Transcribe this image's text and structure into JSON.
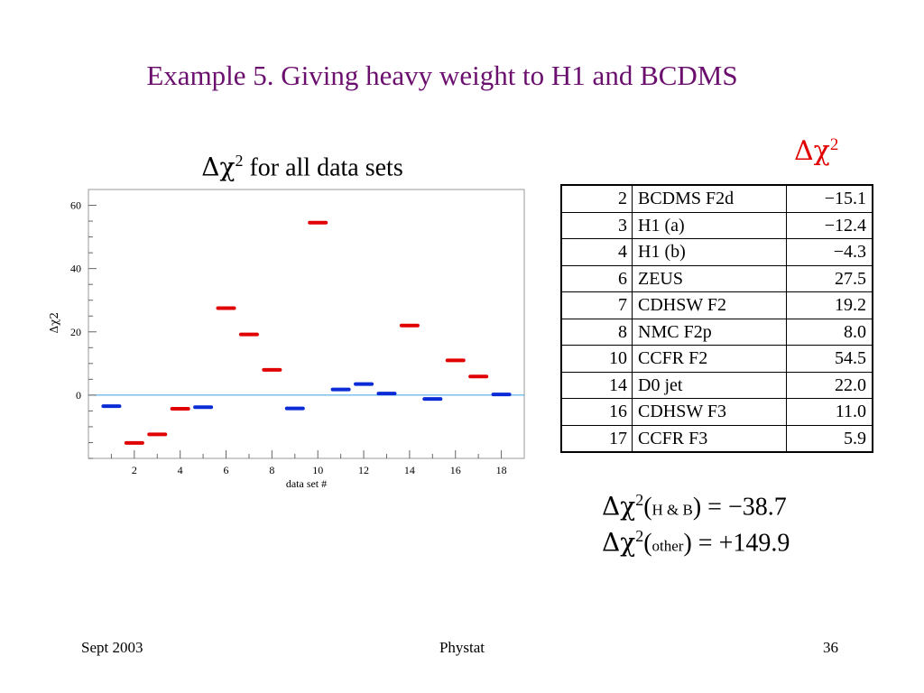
{
  "slide": {
    "title": "Example 5. Giving heavy weight to H1 and BCDMS",
    "chart_title_delta": "Δχ",
    "chart_title_sup": "2",
    "chart_title_rest": " for all data sets",
    "table_title_delta": "Δχ",
    "table_title_sup": "2"
  },
  "table": {
    "rows": [
      {
        "set": "2",
        "name": "BCDMS F2d",
        "value": "−15.1"
      },
      {
        "set": "3",
        "name": "H1 (a)",
        "value": "−12.4"
      },
      {
        "set": "4",
        "name": "H1 (b)",
        "value": "−4.3"
      },
      {
        "set": "6",
        "name": "ZEUS",
        "value": "27.5"
      },
      {
        "set": "7",
        "name": "CDHSW F2",
        "value": "19.2"
      },
      {
        "set": "8",
        "name": "NMC F2p",
        "value": "8.0"
      },
      {
        "set": "10",
        "name": "CCFR F2",
        "value": "54.5"
      },
      {
        "set": "14",
        "name": "D0 jet",
        "value": "22.0"
      },
      {
        "set": "16",
        "name": "CDHSW F3",
        "value": "11.0"
      },
      {
        "set": "17",
        "name": "CCFR F3",
        "value": "5.9"
      }
    ]
  },
  "summary": {
    "line1_prefix": "Δχ",
    "line1_sup": "2",
    "line1_open": "(",
    "line1_small": "H & B",
    "line1_rest": ") = −38.7",
    "line2_prefix": "Δχ",
    "line2_sup": "2",
    "line2_open": "(",
    "line2_small": "other",
    "line2_rest": ") = +149.9"
  },
  "footer": {
    "left": "Sept 2003",
    "center": "Phystat",
    "right": "36"
  },
  "colors": {
    "title": "#6b0f6e",
    "red_series": "#e00000",
    "blue_series": "#0a2bd6",
    "zero_line": "#3aa0e6"
  },
  "chart_data": {
    "type": "scatter",
    "xlabel": "data set #",
    "ylabel": "Δχ2",
    "xlim": [
      0,
      19
    ],
    "ylim": [
      -20,
      65
    ],
    "x_ticks": [
      2,
      4,
      6,
      8,
      10,
      12,
      14,
      16,
      18
    ],
    "y_ticks": [
      0,
      20,
      40,
      60
    ],
    "series": [
      {
        "color": "#e00000",
        "points": [
          {
            "x": 2,
            "y": -15.1
          },
          {
            "x": 3,
            "y": -12.4
          },
          {
            "x": 4,
            "y": -4.3
          },
          {
            "x": 6,
            "y": 27.5
          },
          {
            "x": 7,
            "y": 19.2
          },
          {
            "x": 8,
            "y": 8.0
          },
          {
            "x": 10,
            "y": 54.5
          },
          {
            "x": 14,
            "y": 22.0
          },
          {
            "x": 16,
            "y": 11.0
          },
          {
            "x": 17,
            "y": 5.9
          }
        ]
      },
      {
        "color": "#0a2bd6",
        "points": [
          {
            "x": 1,
            "y": -3.5
          },
          {
            "x": 5,
            "y": -3.8
          },
          {
            "x": 9,
            "y": -4.2
          },
          {
            "x": 11,
            "y": 1.8
          },
          {
            "x": 12,
            "y": 3.5
          },
          {
            "x": 13,
            "y": 0.5
          },
          {
            "x": 15,
            "y": -1.2
          },
          {
            "x": 18,
            "y": 0.2
          }
        ]
      }
    ]
  }
}
